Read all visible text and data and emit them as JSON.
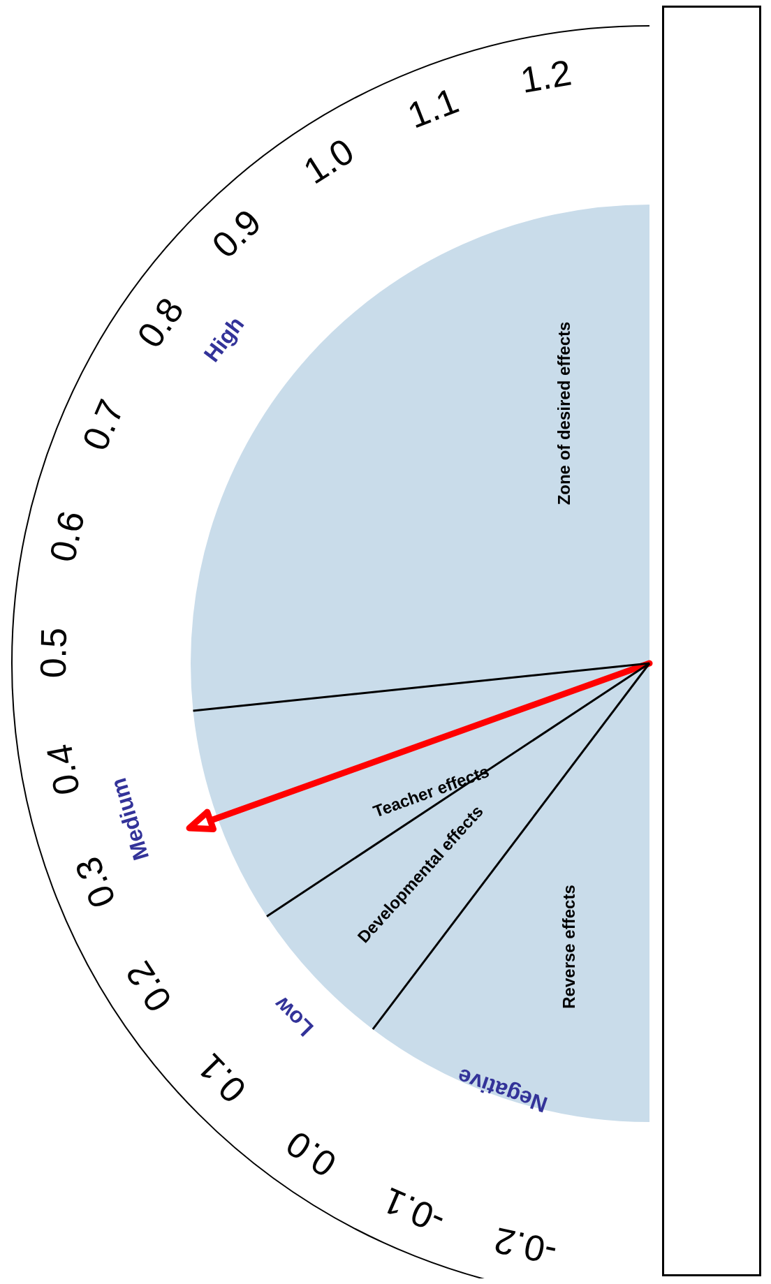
{
  "chart_data": {
    "type": "pie",
    "categories": [
      "Reverse effects",
      "Developmental effects",
      "Teacher effects",
      "Zone of desired effects"
    ],
    "values": [
      20.6,
      10.8,
      15.3,
      53.3
    ],
    "colors": [
      "#c9dcea",
      "#c9dcea",
      "#c9dcea",
      "#c9dcea"
    ],
    "needle": "Teacher effects",
    "annotations": [
      "-0.2",
      "-0.1",
      "0.0",
      "0.1",
      "0.2",
      "0.3",
      "0.4",
      "0.5",
      "0.6",
      "0.7",
      "0.8",
      "0.9",
      "1.0",
      "1.1",
      "1.2",
      "Negative",
      "Low",
      "Medium",
      "High"
    ]
  }
}
